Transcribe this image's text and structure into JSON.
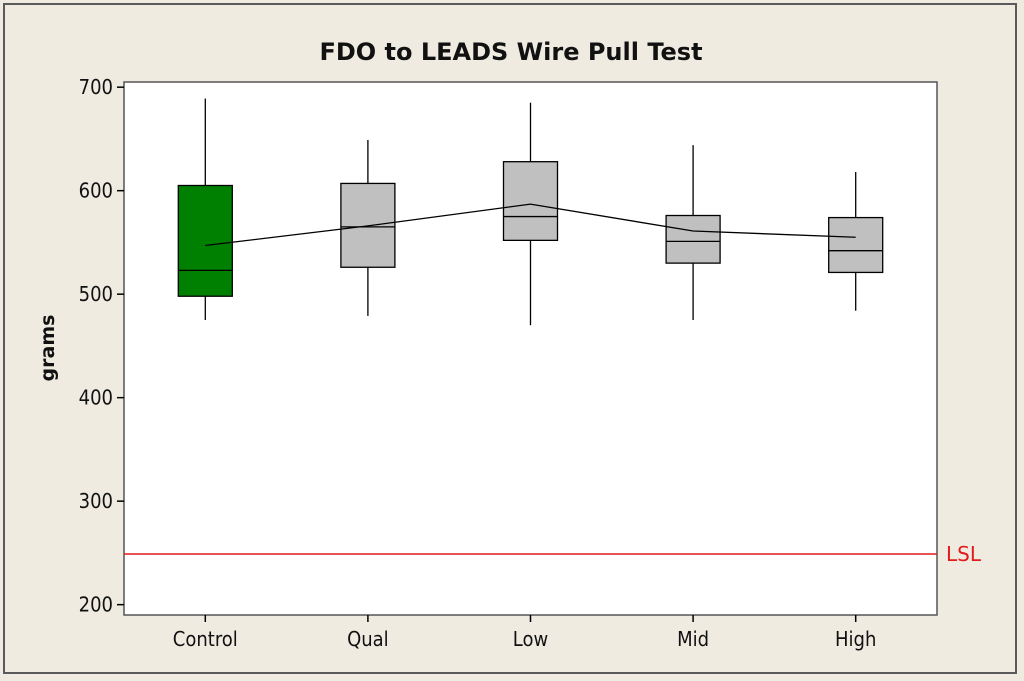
{
  "chart_data": {
    "type": "box",
    "title": "FDO to LEADS Wire Pull Test",
    "xlabel": "",
    "ylabel": "grams",
    "ylim": [
      190,
      705
    ],
    "yticks": [
      200,
      300,
      400,
      500,
      600,
      700
    ],
    "categories": [
      "Control",
      "Qual",
      "Low",
      "Mid",
      "High"
    ],
    "boxes": [
      {
        "category": "Control",
        "min": 475,
        "q1": 498,
        "median": 523,
        "q3": 605,
        "max": 689,
        "mean": 547,
        "color": "#008000"
      },
      {
        "category": "Qual",
        "min": 479,
        "q1": 526,
        "median": 565,
        "q3": 607,
        "max": 649,
        "mean": 566,
        "color": "#c0c0c0"
      },
      {
        "category": "Low",
        "min": 470,
        "q1": 552,
        "median": 575,
        "q3": 628,
        "max": 685,
        "mean": 587,
        "color": "#c0c0c0"
      },
      {
        "category": "Mid",
        "min": 475,
        "q1": 530,
        "median": 551,
        "q3": 576,
        "max": 644,
        "mean": 561,
        "color": "#c0c0c0"
      },
      {
        "category": "High",
        "min": 484,
        "q1": 521,
        "median": 542,
        "q3": 574,
        "max": 618,
        "mean": 555,
        "color": "#c0c0c0"
      }
    ],
    "mean_line": true,
    "reference_lines": [
      {
        "label": "LSL",
        "value": 249,
        "color": "#e31a1c"
      }
    ],
    "grid": false,
    "colors": {
      "background": "#efebe1",
      "plot_bg": "#ffffff",
      "lines": "#000000"
    }
  }
}
